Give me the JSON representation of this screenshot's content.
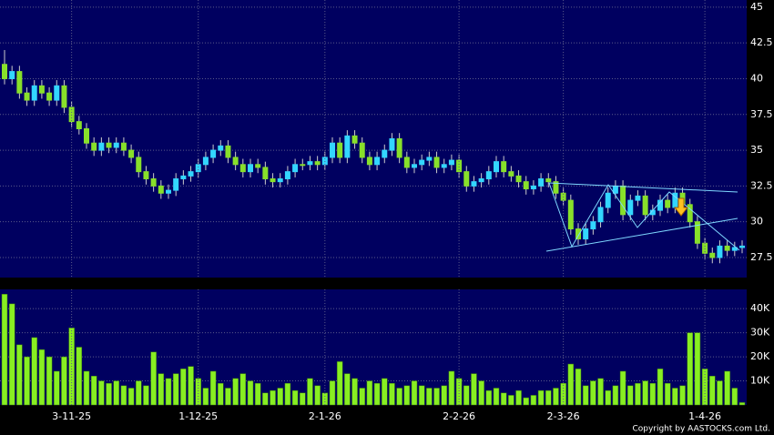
{
  "chart_data": [
    {
      "type": "candlestick",
      "open": [
        41,
        40,
        40.5,
        39,
        38.5,
        39.5,
        39,
        38.5,
        39.5,
        38,
        37,
        36.5,
        35.5,
        35,
        35.5,
        35.2,
        35.5,
        35,
        34.5,
        33.5,
        33,
        32.5,
        32,
        32.2,
        33,
        33.2,
        33.5,
        34,
        34.5,
        35,
        35.3,
        34.5,
        34,
        33.5,
        34,
        33.8,
        33,
        32.8,
        33,
        33.5,
        34,
        34,
        34.2,
        34,
        34.5,
        35.5,
        34.5,
        36,
        35.5,
        34.5,
        34,
        34.5,
        35,
        35.8,
        34.5,
        33.8,
        34,
        34.3,
        34.5,
        33.8,
        34,
        34.3,
        33.5,
        32.5,
        32.8,
        33,
        33.5,
        34.2,
        33.5,
        33.2,
        32.8,
        32.3,
        32.5,
        33,
        32.8,
        32,
        31.5,
        29.5,
        28.8,
        29.5,
        30,
        31,
        32,
        32.5,
        30.5,
        31.5,
        31.8,
        30.5,
        30.8,
        31.5,
        31,
        32,
        31.2,
        30,
        28.5,
        27.8,
        27.5,
        28.3,
        28,
        28.2
      ],
      "high": [
        42,
        40.9,
        40.9,
        39.4,
        39.9,
        39.9,
        39.4,
        39.9,
        39.9,
        38.4,
        37.4,
        36.9,
        35.9,
        35.9,
        35.9,
        35.9,
        35.9,
        35.4,
        34.9,
        33.9,
        33.4,
        32.9,
        32.6,
        33.4,
        33.6,
        33.9,
        34.4,
        34.9,
        35.4,
        35.7,
        35.7,
        34.9,
        34.4,
        34.4,
        34.4,
        34.2,
        33.4,
        33.4,
        33.9,
        34.4,
        34.4,
        34.6,
        34.6,
        34.9,
        35.9,
        35.9,
        36.4,
        36.4,
        35.9,
        34.9,
        34.9,
        35.4,
        36.2,
        36.2,
        34.9,
        34.4,
        34.7,
        34.9,
        34.9,
        34.4,
        34.7,
        34.7,
        33.9,
        33.2,
        33.4,
        33.9,
        34.6,
        34.6,
        33.9,
        33.6,
        33.2,
        32.9,
        33.4,
        33.4,
        33.2,
        32.4,
        31.9,
        29.9,
        29.9,
        30.4,
        31.4,
        32.4,
        32.9,
        32.9,
        31.9,
        32.2,
        32.2,
        31.2,
        31.9,
        31.9,
        32.4,
        32.4,
        31.6,
        30.4,
        28.9,
        28.2,
        28.7,
        28.7,
        28.6,
        28.7
      ],
      "low": [
        39.6,
        39.6,
        38.6,
        38.1,
        38.1,
        38.6,
        38.1,
        38.1,
        37.6,
        36.6,
        36.1,
        35.1,
        34.6,
        34.6,
        34.8,
        34.8,
        34.6,
        34.1,
        33.1,
        32.6,
        32.1,
        31.6,
        31.6,
        31.8,
        32.6,
        32.8,
        33.1,
        33.6,
        34.1,
        34.6,
        34.1,
        33.6,
        33.1,
        33.1,
        33.4,
        32.6,
        32.4,
        32.4,
        32.6,
        33.1,
        33.6,
        33.6,
        33.6,
        33.6,
        34.1,
        34.1,
        34.1,
        35.1,
        34.1,
        33.6,
        33.6,
        34.1,
        34.6,
        34.1,
        33.4,
        33.4,
        33.6,
        33.9,
        33.4,
        33.4,
        33.6,
        33.1,
        32.1,
        32.1,
        32.4,
        32.6,
        33.1,
        33.1,
        32.8,
        32.4,
        31.9,
        31.9,
        32.1,
        32.4,
        31.6,
        31.1,
        29.1,
        28.4,
        28.4,
        29.1,
        29.6,
        30.6,
        31.6,
        30.1,
        30.1,
        31.1,
        30.1,
        30.1,
        30.4,
        30.6,
        30.6,
        30.8,
        29.6,
        28.1,
        27.4,
        27.1,
        27.1,
        27.6,
        27.6,
        27.8
      ],
      "close": [
        40,
        40.5,
        39,
        38.5,
        39.5,
        39,
        38.5,
        39.5,
        38,
        37,
        36.5,
        35.5,
        35,
        35.5,
        35.2,
        35.5,
        35,
        34.5,
        33.5,
        33,
        32.5,
        32,
        32.2,
        33,
        33.2,
        33.5,
        34,
        34.5,
        35,
        35.3,
        34.5,
        34,
        33.5,
        34,
        33.8,
        33,
        32.8,
        33,
        33.5,
        34,
        34,
        34.2,
        34,
        34.5,
        35.5,
        34.5,
        36,
        35.5,
        34.5,
        34,
        34.5,
        35,
        35.8,
        34.5,
        33.8,
        34,
        34.3,
        34.5,
        33.8,
        34,
        34.3,
        33.5,
        32.5,
        32.8,
        33,
        33.5,
        34.2,
        33.5,
        33.2,
        32.8,
        32.3,
        32.5,
        33,
        32.8,
        32,
        31.5,
        29.5,
        28.8,
        29.5,
        30,
        31,
        32,
        32.5,
        30.5,
        31.5,
        31.8,
        30.5,
        30.8,
        31.5,
        31,
        32,
        31.2,
        30,
        28.5,
        27.8,
        27.5,
        28.3,
        28,
        28.2,
        28.3
      ],
      "up_color": "#33d6ff",
      "down_color": "#88e02a",
      "ylim": [
        26.1,
        45.5
      ],
      "yticks": [
        27.5,
        30,
        32.5,
        35,
        37.5,
        40,
        42.5,
        45
      ],
      "grid": true
    },
    {
      "type": "bar",
      "categories": [
        null,
        null,
        null,
        null,
        null,
        null,
        null,
        null,
        null,
        "3-11-25",
        null,
        null,
        null,
        null,
        null,
        null,
        null,
        null,
        null,
        null,
        null,
        null,
        null,
        null,
        null,
        null,
        "1-12-25",
        null,
        null,
        null,
        null,
        null,
        null,
        null,
        null,
        null,
        null,
        null,
        null,
        null,
        null,
        null,
        null,
        "2-1-26",
        null,
        null,
        null,
        null,
        null,
        null,
        null,
        null,
        null,
        null,
        null,
        null,
        null,
        null,
        null,
        null,
        null,
        "2-2-26",
        null,
        null,
        null,
        null,
        null,
        null,
        null,
        null,
        null,
        null,
        null,
        null,
        null,
        "2-3-26",
        null,
        null,
        null,
        null,
        null,
        null,
        null,
        null,
        null,
        null,
        null,
        null,
        null,
        null,
        null,
        null,
        null,
        null,
        "1-4-26",
        null,
        null,
        null,
        null,
        null
      ],
      "values": [
        46000,
        42000,
        25000,
        20000,
        28000,
        23000,
        20000,
        14000,
        20000,
        32000,
        24000,
        14000,
        12000,
        10000,
        9000,
        10000,
        8000,
        7000,
        10000,
        8000,
        22000,
        13000,
        11000,
        13000,
        15000,
        16000,
        11000,
        7000,
        14000,
        9000,
        7000,
        11000,
        13000,
        10000,
        9000,
        5000,
        6000,
        7000,
        9000,
        6000,
        5000,
        11000,
        8000,
        5000,
        10000,
        18000,
        13000,
        11000,
        7000,
        10000,
        9000,
        11000,
        9000,
        7000,
        8000,
        10000,
        8000,
        7000,
        7000,
        8000,
        14000,
        11000,
        8000,
        13000,
        10000,
        6000,
        7000,
        5000,
        4000,
        6000,
        3000,
        4000,
        6000,
        6000,
        7000,
        9000,
        17000,
        15000,
        8000,
        10000,
        11000,
        6000,
        8000,
        14000,
        8000,
        9000,
        10000,
        9000,
        15000,
        9000,
        7000,
        8000,
        30000,
        30000,
        15000,
        12000,
        10000,
        14000,
        7000,
        1000
      ],
      "color": "#88ee22",
      "ylim": [
        0,
        48000
      ],
      "yticks": [
        {
          "value": 10000,
          "label": "10K"
        },
        {
          "value": 20000,
          "label": "20K"
        },
        {
          "value": 30000,
          "label": "30K"
        },
        {
          "value": 40000,
          "label": "40K"
        }
      ],
      "grid": true,
      "footnote": "Copyright by AASTOCKS.com Ltd."
    }
  ]
}
